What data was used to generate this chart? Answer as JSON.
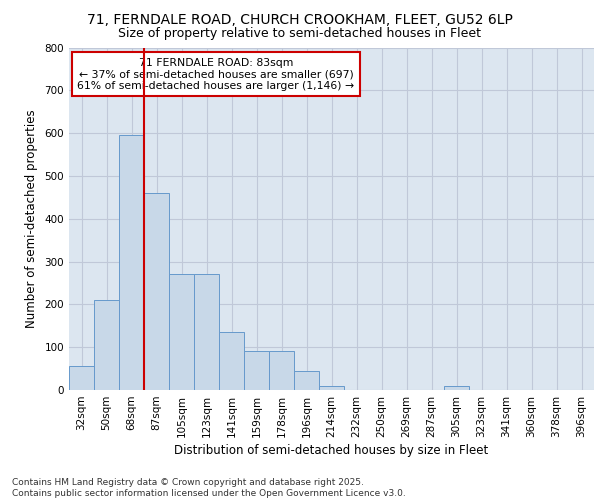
{
  "title_line1": "71, FERNDALE ROAD, CHURCH CROOKHAM, FLEET, GU52 6LP",
  "title_line2": "Size of property relative to semi-detached houses in Fleet",
  "xlabel": "Distribution of semi-detached houses by size in Fleet",
  "ylabel": "Number of semi-detached properties",
  "categories": [
    "32sqm",
    "50sqm",
    "68sqm",
    "87sqm",
    "105sqm",
    "123sqm",
    "141sqm",
    "159sqm",
    "178sqm",
    "196sqm",
    "214sqm",
    "232sqm",
    "250sqm",
    "269sqm",
    "287sqm",
    "305sqm",
    "323sqm",
    "341sqm",
    "360sqm",
    "378sqm",
    "396sqm"
  ],
  "values": [
    55,
    210,
    595,
    460,
    270,
    270,
    135,
    90,
    90,
    45,
    10,
    0,
    0,
    0,
    0,
    10,
    0,
    0,
    0,
    0,
    0
  ],
  "bar_color": "#c8d8e8",
  "bar_edge_color": "#6699cc",
  "vline_index": 2.5,
  "vline_color": "#cc0000",
  "annotation_box_text": "71 FERNDALE ROAD: 83sqm\n← 37% of semi-detached houses are smaller (697)\n61% of semi-detached houses are larger (1,146) →",
  "annotation_box_color": "#cc0000",
  "annotation_box_bg": "#ffffff",
  "ylim": [
    0,
    800
  ],
  "yticks": [
    0,
    100,
    200,
    300,
    400,
    500,
    600,
    700,
    800
  ],
  "grid_color": "#c0c8d8",
  "background_color": "#dce6f0",
  "footer_text": "Contains HM Land Registry data © Crown copyright and database right 2025.\nContains public sector information licensed under the Open Government Licence v3.0.",
  "title_fontsize": 10,
  "subtitle_fontsize": 9,
  "axis_label_fontsize": 8.5,
  "tick_fontsize": 7.5,
  "footer_fontsize": 6.5
}
